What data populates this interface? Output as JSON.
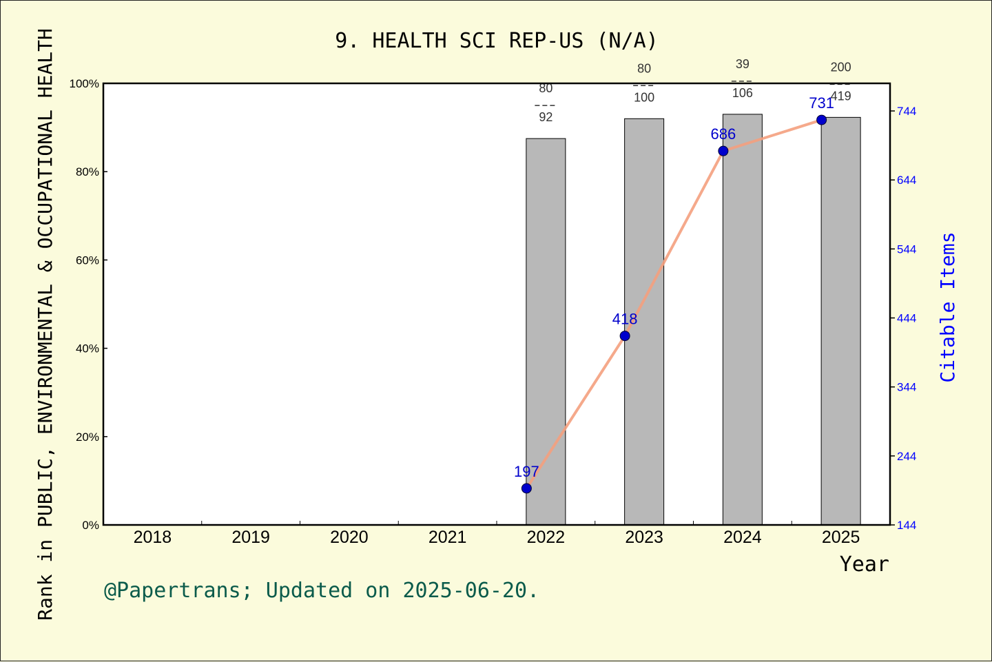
{
  "chart_data": {
    "type": "bar",
    "title": "9. HEALTH SCI REP-US (N/A)",
    "xlabel": "Year",
    "ylabel_left": "Rank in PUBLIC, ENVIRONMENTAL & OCCUPATIONAL HEALTH",
    "ylabel_right": "Citable Items",
    "categories": [
      "2018",
      "2019",
      "2020",
      "2021",
      "2022",
      "2023",
      "2024",
      "2025"
    ],
    "ylim_left": [
      0,
      100
    ],
    "yticks_left": [
      "0%",
      "20%",
      "40%",
      "60%",
      "80%",
      "100%"
    ],
    "ylim_right": [
      144,
      784
    ],
    "yticks_right": [
      "144",
      "244",
      "344",
      "444",
      "544",
      "644",
      "744"
    ],
    "bars": [
      {
        "year": "2022",
        "percent": 87.5,
        "rank": "80",
        "total": "92"
      },
      {
        "year": "2023",
        "percent": 92.0,
        "rank": "80",
        "total": "100"
      },
      {
        "year": "2024",
        "percent": 93.0,
        "rank": "39",
        "total": "106"
      },
      {
        "year": "2025",
        "percent": 92.3,
        "rank": "200",
        "total": "419"
      }
    ],
    "series": [
      {
        "type": "line",
        "points": [
          {
            "year": "2022",
            "value": 197
          },
          {
            "year": "2023",
            "value": 418
          },
          {
            "year": "2024",
            "value": 686
          },
          {
            "year": "2025",
            "value": 731
          }
        ]
      }
    ],
    "colors": {
      "bar": "#b8b8b8",
      "line": "#f4a07e",
      "point": "#0000cc",
      "right_axis": "#0000ff",
      "credit": "#0b5b4b",
      "background": "#fbfbdc"
    }
  },
  "credit": "@Papertrans; Updated on 2025-06-20."
}
